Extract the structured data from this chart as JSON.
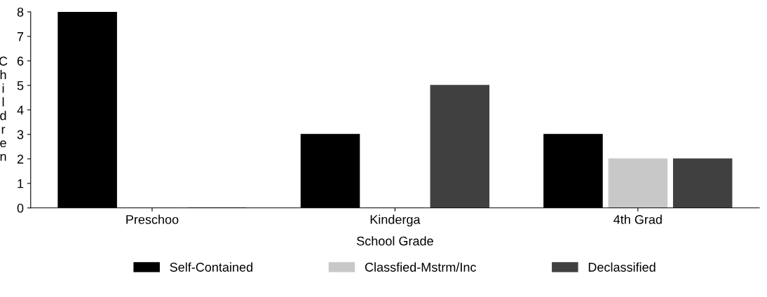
{
  "chart_data": {
    "type": "bar",
    "xlabel": "School Grade",
    "ylabel": "Children",
    "categories": [
      "Preschoo",
      "Kinderga",
      "4th Grad"
    ],
    "series": [
      {
        "name": "Self-Contained",
        "color": "#000000",
        "values": [
          8,
          3,
          3
        ]
      },
      {
        "name": "Classfied-Mstrm/Inc",
        "color": "#c8c8c8",
        "values": [
          0,
          0,
          2
        ]
      },
      {
        "name": "Declassified",
        "color": "#404040",
        "values": [
          0,
          5,
          2
        ]
      }
    ],
    "ylim": [
      0,
      8
    ],
    "yticks": [
      0,
      1,
      2,
      3,
      4,
      5,
      6,
      7,
      8
    ],
    "grid": false,
    "legend": "bottom"
  }
}
